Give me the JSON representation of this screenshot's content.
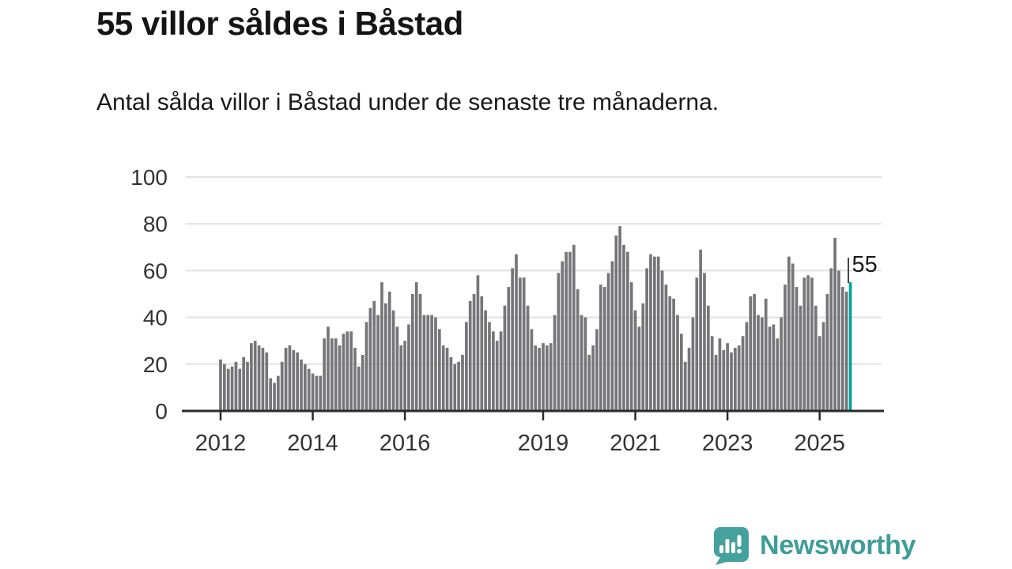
{
  "header": {
    "title": "55 villor såldes i Båstad",
    "subtitle": "Antal sålda villor i Båstad under de senaste tre månaderna."
  },
  "annotation": {
    "highlight_label": "55"
  },
  "footer": {
    "brand": "Newsworthy",
    "logo_icon": "speech-bubble-bar-chart-icon"
  },
  "colors": {
    "bar": "#76767a",
    "highlight": "#00a29e",
    "grid": "#e1e1e1",
    "axis": "#2b2b2b",
    "tick_text": "#333333",
    "title_text": "#151515",
    "annotation_text": "#1a1a1a",
    "brand_teal": "#3f9d99",
    "brand_bubble": "#45a19d"
  },
  "chart_data": {
    "type": "bar",
    "title": "55 villor såldes i Båstad",
    "subtitle": "Antal sålda villor i Båstad under de senaste tre månaderna.",
    "frequency": "monthly",
    "x_start": "2012-01",
    "x_end": "2025-09",
    "ylim": [
      0,
      100
    ],
    "yticks": [
      0,
      20,
      40,
      60,
      80,
      100
    ],
    "xticks_years": [
      2012,
      2014,
      2016,
      2019,
      2021,
      2023,
      2025
    ],
    "grid": true,
    "legend": "none",
    "highlight_last_bar": true,
    "highlight_value": 55,
    "series_by_year": [
      {
        "year": 2012,
        "values": [
          22,
          20,
          18,
          19,
          21,
          18,
          23,
          21,
          29,
          30,
          28,
          27
        ]
      },
      {
        "year": 2013,
        "values": [
          25,
          14,
          12,
          15,
          21,
          27,
          28,
          26,
          25,
          22,
          20,
          18
        ]
      },
      {
        "year": 2014,
        "values": [
          16,
          15,
          15,
          31,
          36,
          31,
          31,
          28,
          33,
          34,
          34,
          27
        ]
      },
      {
        "year": 2015,
        "values": [
          19,
          24,
          38,
          44,
          47,
          41,
          55,
          46,
          51,
          43,
          36,
          28
        ]
      },
      {
        "year": 2016,
        "values": [
          30,
          37,
          50,
          55,
          50,
          41,
          41,
          41,
          40,
          35,
          28,
          27
        ]
      },
      {
        "year": 2017,
        "values": [
          23,
          20,
          21,
          24,
          38,
          47,
          50,
          58,
          49,
          43,
          38,
          34
        ]
      },
      {
        "year": 2018,
        "values": [
          30,
          34,
          45,
          53,
          61,
          67,
          57,
          57,
          45,
          35,
          28,
          27
        ]
      },
      {
        "year": 2019,
        "values": [
          29,
          28,
          29,
          41,
          59,
          64,
          68,
          68,
          71,
          52,
          41,
          40
        ]
      },
      {
        "year": 2020,
        "values": [
          24,
          28,
          35,
          54,
          53,
          59,
          64,
          75,
          79,
          71,
          68,
          55
        ]
      },
      {
        "year": 2021,
        "values": [
          43,
          36,
          46,
          61,
          67,
          66,
          66,
          60,
          54,
          49,
          48,
          41
        ]
      },
      {
        "year": 2022,
        "values": [
          33,
          21,
          27,
          40,
          57,
          69,
          59,
          45,
          32,
          24,
          31,
          26
        ]
      },
      {
        "year": 2023,
        "values": [
          29,
          25,
          27,
          28,
          32,
          38,
          49,
          50,
          41,
          40,
          48,
          36
        ]
      },
      {
        "year": 2024,
        "values": [
          37,
          31,
          40,
          54,
          66,
          63,
          53,
          45,
          57,
          58,
          57,
          45
        ]
      },
      {
        "year": 2025,
        "values": [
          32,
          38,
          50,
          61,
          74,
          60,
          53,
          51,
          55
        ]
      }
    ]
  }
}
